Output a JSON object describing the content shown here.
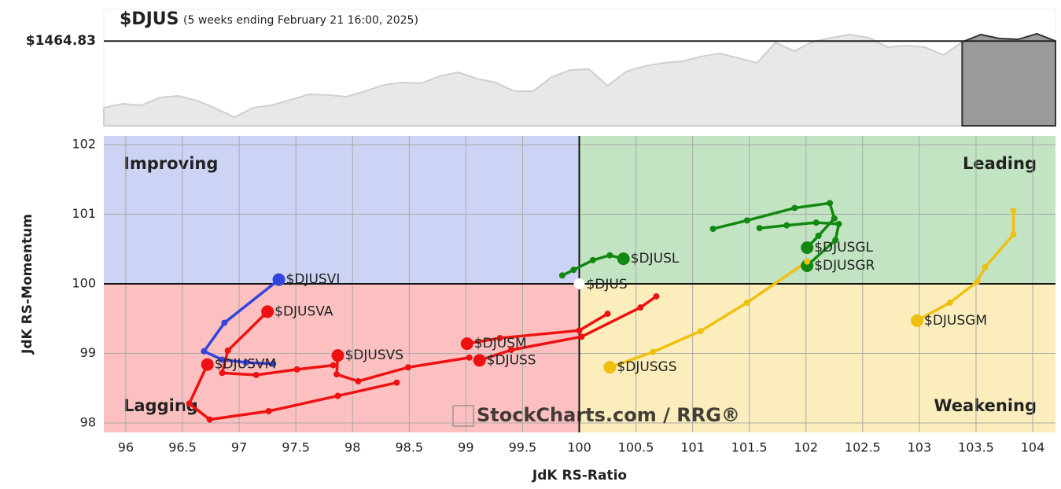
{
  "chart_data": [
    {
      "type": "area",
      "title": "$DJUS",
      "subtitle": "(5 weeks ending February 21 16:00, 2025)",
      "ylim": [
        1392,
        1492
      ],
      "yticks": [
        {
          "value": 1464.83,
          "label": "$1464.83"
        }
      ],
      "series": [
        {
          "color": "#e8e8e8",
          "values": [
            1407.5,
            1410.9,
            1409.6,
            1416.3,
            1417.7,
            1413.6,
            1406.9,
            1399.4,
            1407.5,
            1409.6,
            1414.3,
            1419.0,
            1418.4,
            1417.0,
            1421.7,
            1427.1,
            1429.2,
            1428.5,
            1434.6,
            1437.9,
            1432.5,
            1429.2,
            1421.7,
            1421.7,
            1433.9,
            1440.0,
            1440.6,
            1426.5,
            1438.6,
            1443.4,
            1446.1,
            1447.4,
            1451.5,
            1454.2,
            1450.1,
            1446.1,
            1463.6,
            1456.2,
            1464.3,
            1467.7,
            1470.4,
            1467.7,
            1459.6,
            1460.9,
            1459.6,
            1452.8,
            1464.0,
            null,
            null,
            null,
            null,
            null
          ]
        },
        {
          "color": "#9a9a9a",
          "values": [
            null,
            null,
            null,
            null,
            null,
            null,
            null,
            null,
            null,
            null,
            null,
            null,
            null,
            null,
            null,
            null,
            null,
            null,
            null,
            null,
            null,
            null,
            null,
            null,
            null,
            null,
            null,
            null,
            null,
            null,
            null,
            null,
            null,
            null,
            null,
            null,
            null,
            null,
            null,
            null,
            null,
            null,
            null,
            null,
            null,
            null,
            1464.0,
            1470.4,
            1467.0,
            1466.3,
            1471.1,
            1464.83
          ]
        }
      ]
    },
    {
      "type": "rrg",
      "x_label": "JdK RS-Ratio",
      "y_label": "JdK RS-Momentum",
      "xlim": [
        95.806,
        104.201
      ],
      "ylim": [
        97.865,
        102.124
      ],
      "xticks": [
        96,
        96.5,
        97,
        97.5,
        98,
        98.5,
        99,
        99.5,
        100,
        100.5,
        101,
        101.5,
        102,
        102.5,
        103,
        103.5,
        104
      ],
      "yticks": [
        98,
        99,
        100,
        101,
        102
      ],
      "grid": true,
      "center": {
        "x": 100,
        "y": 100
      },
      "quadrants": [
        {
          "name": "Improving",
          "position": "top-left",
          "color": "#3344cc",
          "fill": "#ccd3f4"
        },
        {
          "name": "Leading",
          "position": "top-right",
          "color": "#118811",
          "fill": "#c2e4c2"
        },
        {
          "name": "Lagging",
          "position": "bottom-left",
          "color": "#ee1111",
          "fill": "#fdc0c0"
        },
        {
          "name": "Weakening",
          "position": "bottom-right",
          "color": "#f0c010",
          "fill": "#fbeebc"
        }
      ],
      "benchmark": {
        "name": "$DJUS",
        "x": 100,
        "y": 100
      },
      "watermark": "StockCharts.com / RRG®",
      "series": [
        {
          "name": "$DJUSVI",
          "color": "#3344dd",
          "x": [
            97.3,
            97.06,
            96.85,
            96.69,
            96.87,
            97.35
          ],
          "y": [
            98.85,
            98.87,
            98.91,
            99.03,
            99.44,
            100.06
          ]
        },
        {
          "name": "$DJUSVA",
          "color": "#ee1111",
          "x": [
            97.83,
            97.51,
            97.15,
            96.85,
            96.9,
            97.25
          ],
          "y": [
            98.83,
            98.77,
            98.69,
            98.72,
            99.04,
            99.6
          ]
        },
        {
          "name": "$DJUSVM",
          "color": "#ee1111",
          "x": [
            98.39,
            97.87,
            97.26,
            96.74,
            96.56,
            96.72
          ],
          "y": [
            98.58,
            98.39,
            98.17,
            98.05,
            98.28,
            98.84
          ]
        },
        {
          "name": "$DJUSVS",
          "color": "#ee1111",
          "x": [
            99.03,
            98.49,
            98.05,
            97.86,
            97.87
          ],
          "y": [
            98.94,
            98.8,
            98.6,
            98.7,
            98.97
          ]
        },
        {
          "name": "$DJUSM",
          "color": "#ee1111",
          "x": [
            100.25,
            100.0,
            99.3,
            99.01
          ],
          "y": [
            99.57,
            99.33,
            99.22,
            99.14
          ]
        },
        {
          "name": "$DJUSS",
          "color": "#ee1111",
          "x": [
            100.68,
            100.54,
            100.02,
            99.4,
            99.12
          ],
          "y": [
            99.82,
            99.66,
            99.24,
            99.05,
            98.9
          ]
        },
        {
          "name": "$DJUSL",
          "color": "#118811",
          "x": [
            99.85,
            99.95,
            100.12,
            100.27,
            100.39
          ],
          "y": [
            100.12,
            100.2,
            100.34,
            100.41,
            100.36
          ]
        },
        {
          "name": "$DJUSGL",
          "color": "#118811",
          "x": [
            101.18,
            101.48,
            101.9,
            102.21,
            102.25,
            102.11,
            102.01
          ],
          "y": [
            100.79,
            100.91,
            101.09,
            101.16,
            100.94,
            100.69,
            100.52
          ]
        },
        {
          "name": "$DJUSGR",
          "color": "#118811",
          "x": [
            101.59,
            101.83,
            102.09,
            102.29,
            102.26,
            102.01
          ],
          "y": [
            100.8,
            100.84,
            100.88,
            100.86,
            100.63,
            100.26
          ]
        },
        {
          "name": "$DJUSGS",
          "color": "#f0c010",
          "x": [
            102.01,
            101.48,
            101.07,
            100.65,
            100.27
          ],
          "y": [
            100.32,
            99.73,
            99.32,
            99.02,
            98.8
          ]
        },
        {
          "name": "$DJUSGM",
          "color": "#f0c010",
          "x": [
            103.83,
            103.83,
            103.58,
            103.51,
            103.27,
            102.98
          ],
          "y": [
            101.05,
            100.71,
            100.24,
            100.03,
            99.73,
            99.47
          ]
        }
      ]
    }
  ]
}
